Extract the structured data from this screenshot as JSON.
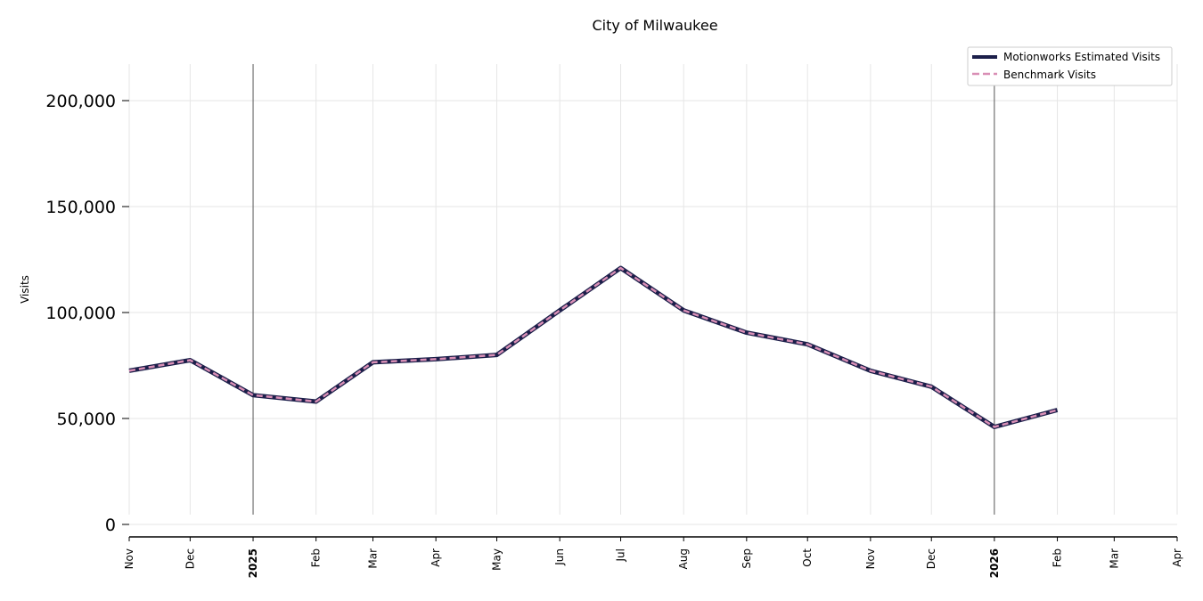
{
  "chart_data": {
    "type": "line",
    "title": "City of Milwaukee",
    "xlabel": "",
    "ylabel": "Visits",
    "ylim": [
      0,
      215000
    ],
    "yticks": [
      0,
      50000,
      100000,
      150000,
      200000
    ],
    "ytick_labels": [
      "0",
      "50,000",
      "100,000",
      "150,000",
      "200,000"
    ],
    "xlim": [
      "2024-11-01",
      "2026-04-01"
    ],
    "xticks": [
      "2024-11-01",
      "2024-12-01",
      "2025-01-01",
      "2025-02-01",
      "2025-03-01",
      "2025-04-01",
      "2025-05-01",
      "2025-06-01",
      "2025-07-01",
      "2025-08-01",
      "2025-09-01",
      "2025-10-01",
      "2025-11-01",
      "2025-12-01",
      "2026-01-01",
      "2026-02-01",
      "2026-03-01",
      "2026-04-01"
    ],
    "xtick_labels": [
      "Nov",
      "Dec",
      "2025",
      "Feb",
      "Mar",
      "Apr",
      "May",
      "Jun",
      "Jul",
      "Aug",
      "Sep",
      "Oct",
      "Nov",
      "Dec",
      "2026",
      "Feb",
      "Mar",
      "Apr"
    ],
    "bold_xticks": [
      "2025",
      "2026"
    ],
    "year_markers": [
      "2025-01-01",
      "2026-01-01"
    ],
    "grid": true,
    "legend_position": "top-right",
    "x": [
      "2024-11-01",
      "2024-12-01",
      "2025-01-01",
      "2025-02-01",
      "2025-03-01",
      "2025-04-01",
      "2025-05-01",
      "2025-06-01",
      "2025-07-01",
      "2025-08-01",
      "2025-09-01",
      "2025-10-01",
      "2025-11-01",
      "2025-12-01",
      "2026-01-01",
      "2026-02-01"
    ],
    "series": [
      {
        "name": "Motionworks Estimated Visits",
        "color": "#1c1f4a",
        "style": "solid",
        "values": [
          72500,
          77500,
          61000,
          58000,
          76500,
          78000,
          80000,
          101000,
          121000,
          101000,
          90500,
          85000,
          72500,
          65000,
          46000,
          54000
        ]
      },
      {
        "name": "Benchmark Visits",
        "color": "#d98fb6",
        "style": "dashed",
        "values": [
          72500,
          77500,
          61000,
          58000,
          76500,
          78000,
          80000,
          101000,
          121000,
          101000,
          90500,
          85000,
          72500,
          65000,
          46000,
          54000
        ]
      }
    ]
  }
}
